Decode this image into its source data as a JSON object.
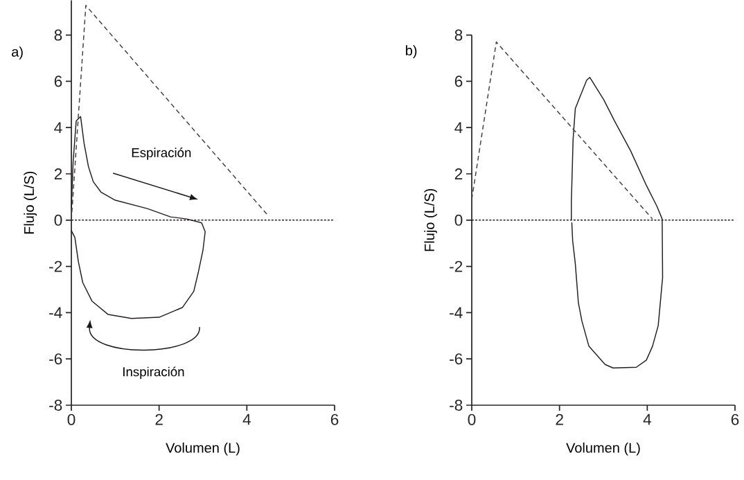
{
  "chart_data": [
    {
      "type": "line",
      "xlabel": "Volumen (L)",
      "ylabel": "Flujo (L/S)",
      "xlim": [
        0,
        6
      ],
      "ylim": [
        -8,
        9.5
      ],
      "xticks": [
        0,
        2,
        4,
        6
      ],
      "yticks": [
        -8,
        -6,
        -4,
        -2,
        0,
        2,
        4,
        6,
        8
      ],
      "grid": false,
      "annotations": [
        "a)",
        "Espiración",
        "Inspiración"
      ],
      "ref_lines": [
        {
          "axis": "y",
          "value": 0,
          "color": "#231f20",
          "line_style": "dotted"
        }
      ],
      "series": [
        {
          "color": "#231f20",
          "line_style": "solid",
          "x": [
            0,
            0.04,
            0.11,
            0.21,
            0.29,
            0.39,
            0.5,
            0.68,
            1.0,
            1.73,
            2.26,
            2.63,
            2.97,
            3.05,
            3.0,
            2.89,
            2.79,
            2.53,
            2.0,
            1.37,
            0.84,
            0.47,
            0.26,
            0.16,
            0.08,
            0
          ],
          "values": [
            0.5,
            2.5,
            4.28,
            4.48,
            3.32,
            2.31,
            1.66,
            1.2,
            0.86,
            0.5,
            0.14,
            0.05,
            -0.12,
            -0.5,
            -1.3,
            -2.29,
            -3.08,
            -3.78,
            -4.2,
            -4.25,
            -4.08,
            -3.5,
            -2.7,
            -1.8,
            -0.75,
            -0.45
          ]
        },
        {
          "color": "#404040",
          "line_style": "dashed",
          "x": [
            0,
            0.33,
            4.46
          ],
          "values": [
            0,
            9.28,
            0.25
          ]
        }
      ]
    },
    {
      "type": "line",
      "xlabel": "Volumen (L)",
      "ylabel": "Flujo (L/S)",
      "xlim": [
        0,
        6
      ],
      "ylim": [
        -8,
        8
      ],
      "xticks": [
        0,
        2,
        4,
        6
      ],
      "yticks": [
        -8,
        -6,
        -4,
        -2,
        0,
        2,
        4,
        6,
        8
      ],
      "grid": false,
      "annotations": [
        "b)"
      ],
      "ref_lines": [
        {
          "axis": "y",
          "value": 0,
          "color": "#231f20",
          "line_style": "dotted"
        }
      ],
      "series": [
        {
          "color": "#231f20",
          "line_style": "solid",
          "x": [
            2.27,
            2.27,
            2.31,
            2.36,
            2.46,
            2.62,
            2.69,
            3.01,
            3.25,
            3.62,
            3.98,
            4.22,
            4.34,
            4.35,
            4.25,
            4.12,
            3.98,
            3.75,
            3.22,
            3.04,
            2.67,
            2.51,
            2.43,
            2.36,
            2.3,
            2.28
          ],
          "values": [
            0,
            0.8,
            3.5,
            4.82,
            5.3,
            6.05,
            6.17,
            5.2,
            4.3,
            3.0,
            1.5,
            0.6,
            0.05,
            -2.48,
            -4.56,
            -5.45,
            -6.05,
            -6.36,
            -6.39,
            -6.24,
            -5.45,
            -4.36,
            -3.57,
            -1.88,
            -0.89,
            -0.1
          ]
        },
        {
          "color": "#404040",
          "line_style": "dashed",
          "x": [
            0,
            0.56,
            4.12
          ],
          "values": [
            0.9,
            7.7,
            0.05
          ]
        }
      ]
    }
  ]
}
